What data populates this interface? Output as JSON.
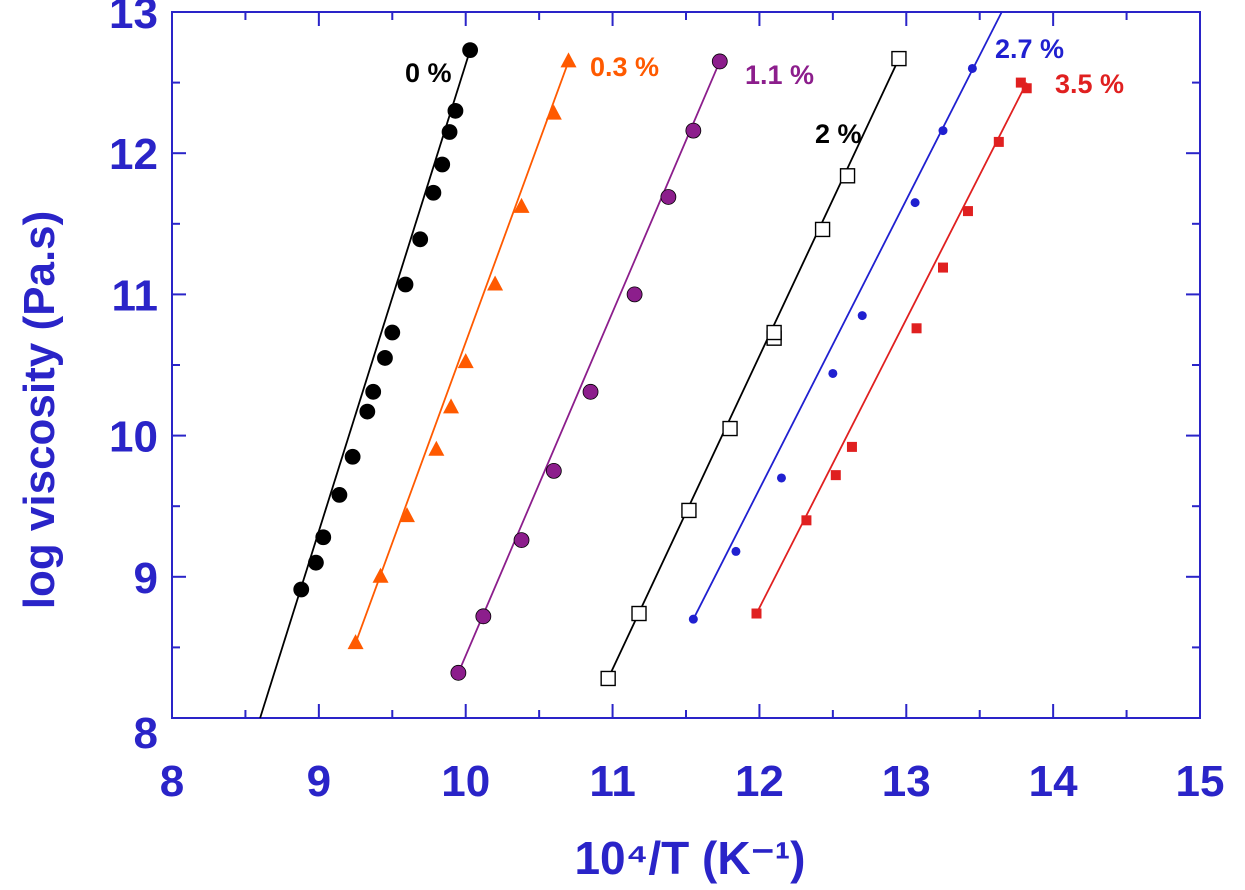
{
  "chart_data": {
    "type": "scatter",
    "xlabel": "10⁴/T (K⁻¹)",
    "ylabel": "log viscosity (Pa.s)",
    "xlim": [
      8,
      15
    ],
    "ylim": [
      8,
      13
    ],
    "x_ticks": [
      "8",
      "9",
      "10",
      "11",
      "12",
      "13",
      "14",
      "15"
    ],
    "y_ticks": [
      "8",
      "9",
      "10",
      "11",
      "12",
      "13"
    ],
    "grid": false,
    "legend": "inline labels",
    "axis_color": "#2a24c8",
    "series": [
      {
        "name": "0 %",
        "color": "#000000",
        "marker": "filled-circle",
        "points": [
          [
            8.88,
            8.91
          ],
          [
            8.98,
            9.1
          ],
          [
            9.03,
            9.28
          ],
          [
            9.14,
            9.58
          ],
          [
            9.23,
            9.85
          ],
          [
            9.33,
            10.17
          ],
          [
            9.37,
            10.31
          ],
          [
            9.45,
            10.55
          ],
          [
            9.5,
            10.73
          ],
          [
            9.59,
            11.07
          ],
          [
            9.69,
            11.39
          ],
          [
            9.78,
            11.72
          ],
          [
            9.84,
            11.92
          ],
          [
            9.89,
            12.15
          ],
          [
            9.93,
            12.3
          ],
          [
            10.03,
            12.73
          ]
        ],
        "line": [
          [
            8.6,
            8.0
          ],
          [
            10.03,
            12.73
          ]
        ]
      },
      {
        "name": "0.3 %",
        "color": "#ff5a00",
        "marker": "filled-triangle",
        "points": [
          [
            9.25,
            8.53
          ],
          [
            9.42,
            9.0
          ],
          [
            9.6,
            9.43
          ],
          [
            9.8,
            9.9
          ],
          [
            9.9,
            10.2
          ],
          [
            10.0,
            10.52
          ],
          [
            10.2,
            11.07
          ],
          [
            10.38,
            11.62
          ],
          [
            10.6,
            12.28
          ],
          [
            10.7,
            12.65
          ]
        ],
        "line": [
          [
            9.25,
            8.53
          ],
          [
            10.7,
            12.65
          ]
        ]
      },
      {
        "name": "1.1 %",
        "color": "#8c1e8c",
        "marker": "filled-circle",
        "points": [
          [
            9.95,
            8.32
          ],
          [
            10.12,
            8.72
          ],
          [
            10.38,
            9.26
          ],
          [
            10.6,
            9.75
          ],
          [
            10.85,
            10.31
          ],
          [
            11.15,
            11.0
          ],
          [
            11.38,
            11.69
          ],
          [
            11.55,
            12.16
          ],
          [
            11.73,
            12.65
          ]
        ],
        "line": [
          [
            9.95,
            8.32
          ],
          [
            11.73,
            12.65
          ]
        ]
      },
      {
        "name": "2 %",
        "color": "#000000",
        "marker": "open-square",
        "points": [
          [
            10.97,
            8.28
          ],
          [
            11.18,
            8.74
          ],
          [
            11.52,
            9.47
          ],
          [
            11.8,
            10.05
          ],
          [
            12.1,
            10.69
          ],
          [
            12.1,
            10.73
          ],
          [
            12.43,
            11.46
          ],
          [
            12.6,
            11.84
          ],
          [
            12.95,
            12.67
          ]
        ],
        "line": [
          [
            10.97,
            8.28
          ],
          [
            12.95,
            12.67
          ]
        ]
      },
      {
        "name": "2.7 %",
        "color": "#2020d0",
        "marker": "filled-circle-small",
        "points": [
          [
            11.55,
            8.7
          ],
          [
            11.84,
            9.18
          ],
          [
            12.15,
            9.7
          ],
          [
            12.5,
            10.44
          ],
          [
            12.7,
            10.85
          ],
          [
            13.06,
            11.65
          ],
          [
            13.25,
            12.16
          ],
          [
            13.45,
            12.6
          ]
        ],
        "line": [
          [
            11.55,
            8.7
          ],
          [
            13.65,
            13.0
          ]
        ]
      },
      {
        "name": "3.5 %",
        "color": "#e02020",
        "marker": "filled-square",
        "points": [
          [
            11.98,
            8.74
          ],
          [
            12.32,
            9.4
          ],
          [
            12.52,
            9.72
          ],
          [
            12.63,
            9.92
          ],
          [
            13.07,
            10.76
          ],
          [
            13.25,
            11.19
          ],
          [
            13.42,
            11.59
          ],
          [
            13.63,
            12.08
          ],
          [
            13.78,
            12.5
          ],
          [
            13.82,
            12.46
          ]
        ],
        "line": [
          [
            11.98,
            8.74
          ],
          [
            13.82,
            12.5
          ]
        ]
      }
    ]
  }
}
